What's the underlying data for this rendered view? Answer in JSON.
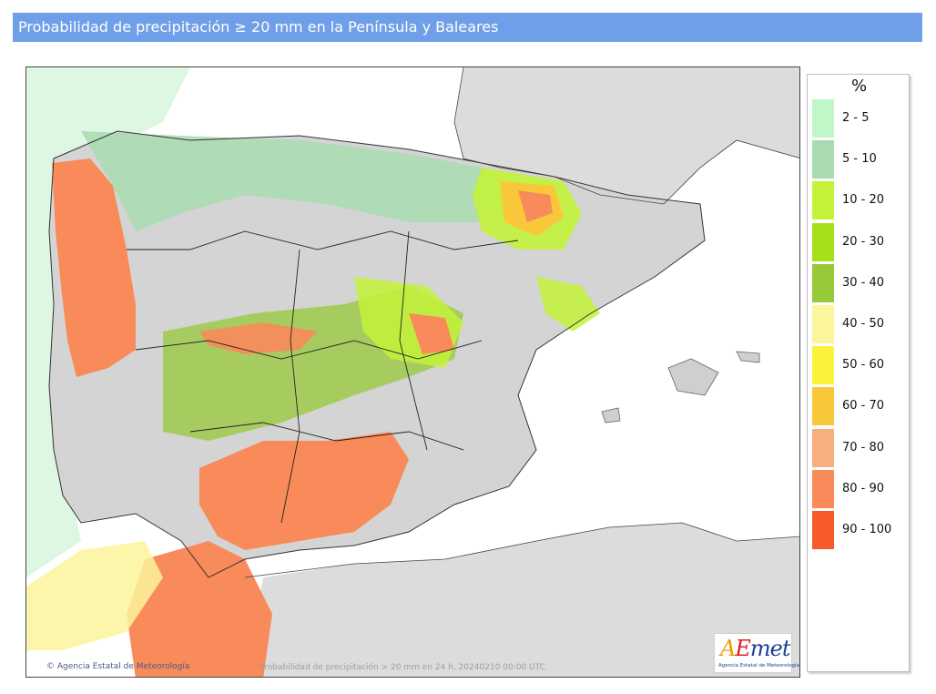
{
  "title": "Probabilidad de precipitación ≥ 20 mm en la Península y Baleares",
  "map": {
    "copyright": "© Agencia Estatal de Meteorología",
    "caption": "Probabilidad de precipitación > 20 mm en 24 h. 20240210 00:00 UTC",
    "logo_text": "AEmet",
    "logo_subtext": "Agencia Estatal de Meteorología"
  },
  "legend": {
    "unit": "%",
    "items": [
      {
        "label": "2 - 5",
        "color": "#bff7c8"
      },
      {
        "label": "5 - 10",
        "color": "#a8dcb0"
      },
      {
        "label": "10 - 20",
        "color": "#c3f23a"
      },
      {
        "label": "20 - 30",
        "color": "#a6e01a"
      },
      {
        "label": "30 - 40",
        "color": "#97c93a"
      },
      {
        "label": "40 - 50",
        "color": "#fbf59c"
      },
      {
        "label": "50 - 60",
        "color": "#fbf23c"
      },
      {
        "label": "60 - 70",
        "color": "#f9c83a"
      },
      {
        "label": "70 - 80",
        "color": "#f9ae80"
      },
      {
        "label": "80 - 90",
        "color": "#f98a5a"
      },
      {
        "label": "90 - 100",
        "color": "#f75a2a"
      }
    ]
  },
  "colors": {
    "title_bar": "#6f9fe8",
    "land_gray": "#d8d8d8",
    "sea": "#ffffff"
  }
}
